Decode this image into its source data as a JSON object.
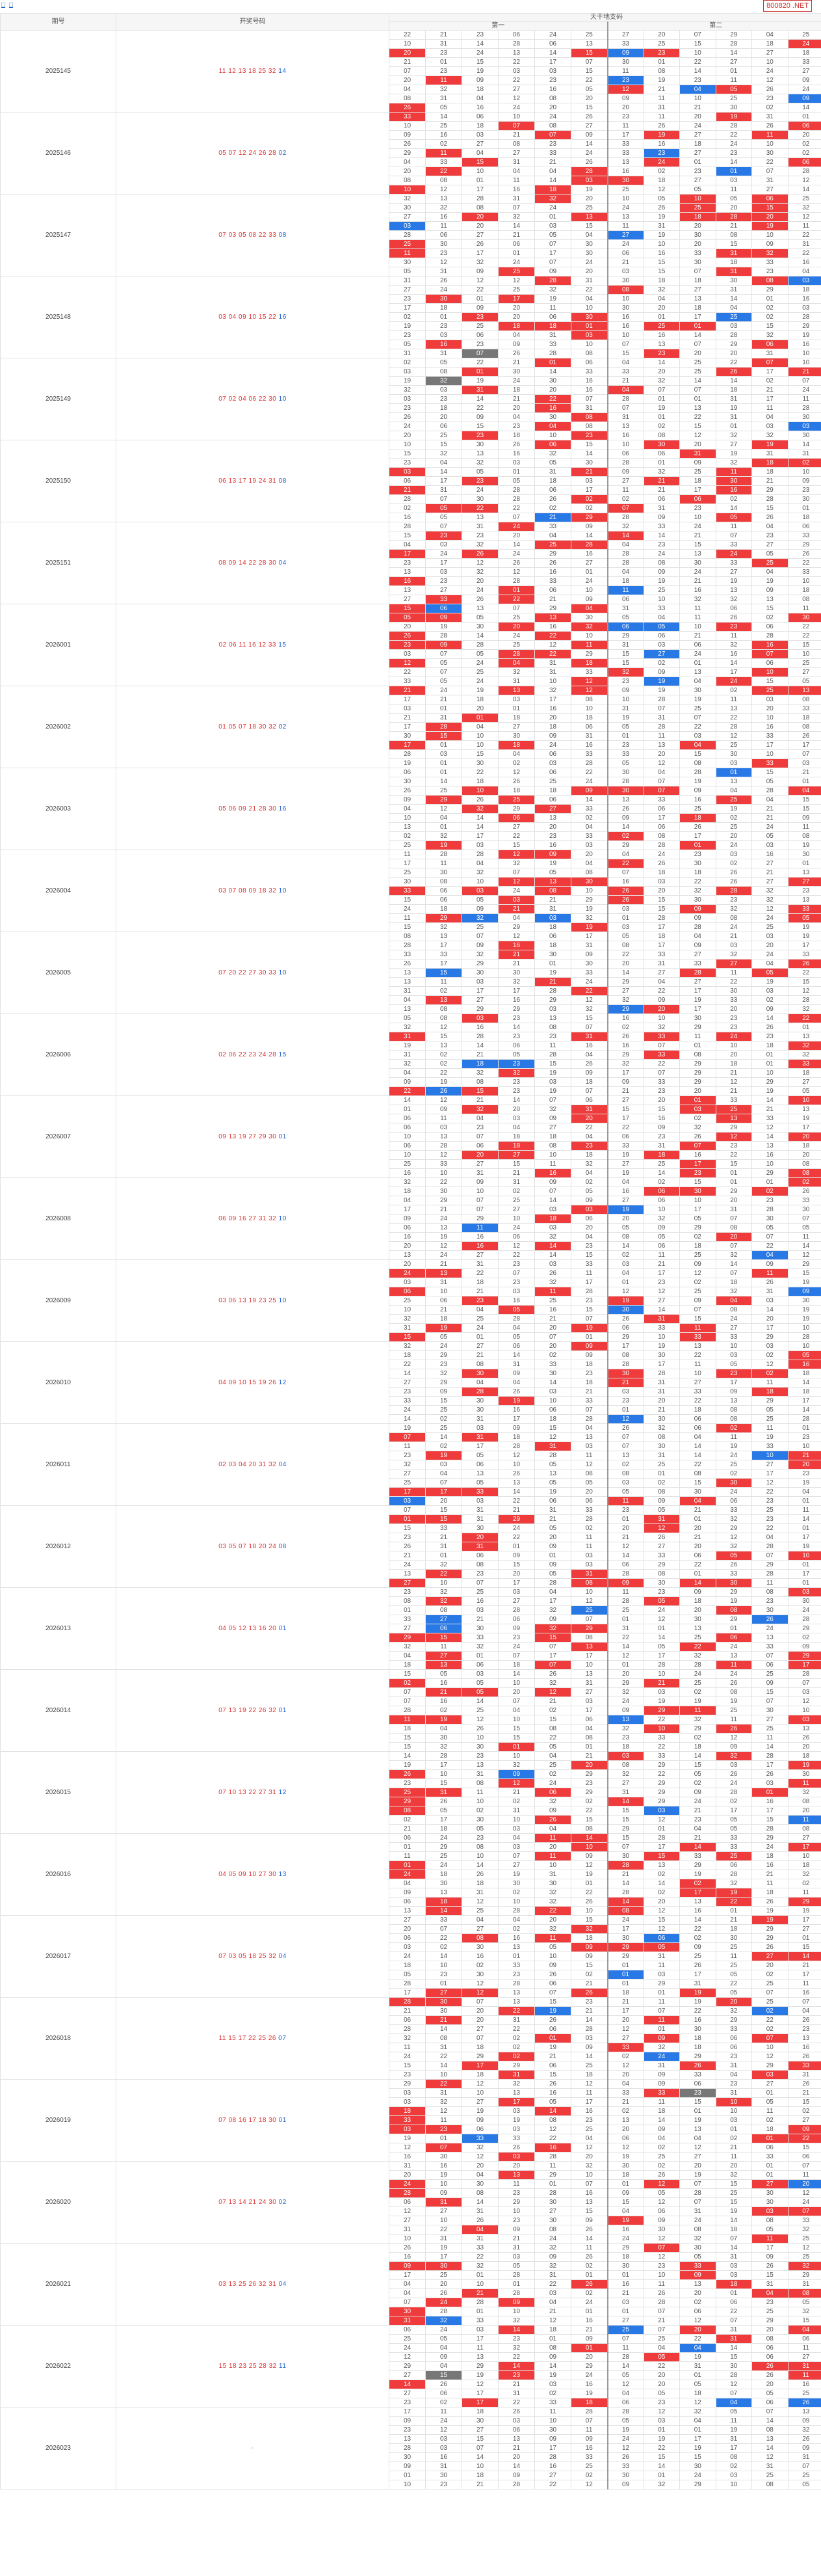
{
  "topbar": {
    "link1": "□",
    "link2": "□",
    "code_label": "800820 .NET"
  },
  "header": {
    "col_period": "期号",
    "col_draw": "开奖号码",
    "col_main": "天干地支码",
    "sub1": "第一",
    "sub2": "第二"
  },
  "periods": [
    {
      "id": "2025145",
      "draw": [
        [
          "11",
          "r"
        ],
        [
          "12",
          "r"
        ],
        [
          "13",
          "r"
        ],
        [
          "18",
          "r"
        ],
        [
          "25",
          "r"
        ],
        [
          "32",
          "r"
        ],
        [
          "14",
          "b"
        ]
      ]
    },
    {
      "id": "2025146",
      "draw": [
        [
          "05",
          "r"
        ],
        [
          "07",
          "r"
        ],
        [
          "12",
          "r"
        ],
        [
          "24",
          "r"
        ],
        [
          "26",
          "r"
        ],
        [
          "28",
          "r"
        ],
        [
          "02",
          "b"
        ]
      ]
    },
    {
      "id": "2025147",
      "draw": [
        [
          "07",
          "r"
        ],
        [
          "03",
          "r"
        ],
        [
          "05",
          "r"
        ],
        [
          "08",
          "r"
        ],
        [
          "22",
          "r"
        ],
        [
          "33",
          "r"
        ],
        [
          "08",
          "b"
        ]
      ]
    },
    {
      "id": "2025148",
      "draw": [
        [
          "03",
          "r"
        ],
        [
          "04",
          "r"
        ],
        [
          "09",
          "r"
        ],
        [
          "10",
          "r"
        ],
        [
          "15",
          "r"
        ],
        [
          "22",
          "r"
        ],
        [
          "16",
          "b"
        ]
      ]
    },
    {
      "id": "2025149",
      "draw": [
        [
          "07",
          "r"
        ],
        [
          "02",
          "r"
        ],
        [
          "04",
          "r"
        ],
        [
          "06",
          "r"
        ],
        [
          "22",
          "r"
        ],
        [
          "30",
          "r"
        ],
        [
          "10",
          "b"
        ]
      ]
    },
    {
      "id": "2025150",
      "draw": [
        [
          "06",
          "r"
        ],
        [
          "13",
          "r"
        ],
        [
          "17",
          "r"
        ],
        [
          "19",
          "r"
        ],
        [
          "24",
          "r"
        ],
        [
          "31",
          "r"
        ],
        [
          "08",
          "b"
        ]
      ]
    },
    {
      "id": "2025151",
      "draw": [
        [
          "08",
          "r"
        ],
        [
          "09",
          "r"
        ],
        [
          "14",
          "r"
        ],
        [
          "22",
          "r"
        ],
        [
          "28",
          "r"
        ],
        [
          "30",
          "r"
        ],
        [
          "04",
          "b"
        ]
      ]
    },
    {
      "id": "2026001",
      "draw": [
        [
          "02",
          "r"
        ],
        [
          "06",
          "r"
        ],
        [
          "11",
          "r"
        ],
        [
          "16",
          "r"
        ],
        [
          "12",
          "r"
        ],
        [
          "33",
          "r"
        ],
        [
          "15",
          "b"
        ]
      ]
    },
    {
      "id": "2026002",
      "draw": [
        [
          "01",
          "r"
        ],
        [
          "05",
          "r"
        ],
        [
          "07",
          "r"
        ],
        [
          "18",
          "r"
        ],
        [
          "30",
          "r"
        ],
        [
          "32",
          "r"
        ],
        [
          "02",
          "b"
        ]
      ]
    },
    {
      "id": "2026003",
      "draw": [
        [
          "05",
          "r"
        ],
        [
          "06",
          "r"
        ],
        [
          "09",
          "r"
        ],
        [
          "21",
          "r"
        ],
        [
          "28",
          "r"
        ],
        [
          "30",
          "r"
        ],
        [
          "16",
          "b"
        ]
      ]
    },
    {
      "id": "2026004",
      "draw": [
        [
          "03",
          "r"
        ],
        [
          "07",
          "r"
        ],
        [
          "08",
          "r"
        ],
        [
          "09",
          "r"
        ],
        [
          "18",
          "r"
        ],
        [
          "32",
          "r"
        ],
        [
          "10",
          "b"
        ]
      ]
    },
    {
      "id": "2026005",
      "draw": [
        [
          "07",
          "r"
        ],
        [
          "20",
          "r"
        ],
        [
          "22",
          "r"
        ],
        [
          "27",
          "r"
        ],
        [
          "30",
          "r"
        ],
        [
          "33",
          "r"
        ],
        [
          "10",
          "b"
        ]
      ]
    },
    {
      "id": "2026006",
      "draw": [
        [
          "02",
          "r"
        ],
        [
          "06",
          "r"
        ],
        [
          "22",
          "r"
        ],
        [
          "23",
          "r"
        ],
        [
          "24",
          "r"
        ],
        [
          "28",
          "r"
        ],
        [
          "15",
          "b"
        ]
      ]
    },
    {
      "id": "2026007",
      "draw": [
        [
          "09",
          "r"
        ],
        [
          "13",
          "r"
        ],
        [
          "19",
          "r"
        ],
        [
          "27",
          "r"
        ],
        [
          "29",
          "r"
        ],
        [
          "30",
          "r"
        ],
        [
          "01",
          "b"
        ]
      ]
    },
    {
      "id": "2026008",
      "draw": [
        [
          "06",
          "r"
        ],
        [
          "09",
          "r"
        ],
        [
          "16",
          "r"
        ],
        [
          "27",
          "r"
        ],
        [
          "31",
          "r"
        ],
        [
          "32",
          "r"
        ],
        [
          "10",
          "b"
        ]
      ]
    },
    {
      "id": "2026009",
      "draw": [
        [
          "03",
          "r"
        ],
        [
          "06",
          "r"
        ],
        [
          "13",
          "r"
        ],
        [
          "19",
          "r"
        ],
        [
          "23",
          "r"
        ],
        [
          "25",
          "r"
        ],
        [
          "10",
          "b"
        ]
      ]
    },
    {
      "id": "2026010",
      "draw": [
        [
          "04",
          "r"
        ],
        [
          "09",
          "r"
        ],
        [
          "10",
          "r"
        ],
        [
          "15",
          "r"
        ],
        [
          "19",
          "r"
        ],
        [
          "26",
          "r"
        ],
        [
          "12",
          "b"
        ]
      ]
    },
    {
      "id": "2026011",
      "draw": [
        [
          "02",
          "r"
        ],
        [
          "03",
          "r"
        ],
        [
          "04",
          "r"
        ],
        [
          "20",
          "r"
        ],
        [
          "31",
          "r"
        ],
        [
          "32",
          "r"
        ],
        [
          "04",
          "b"
        ]
      ]
    },
    {
      "id": "2026012",
      "draw": [
        [
          "03",
          "r"
        ],
        [
          "05",
          "r"
        ],
        [
          "07",
          "r"
        ],
        [
          "18",
          "r"
        ],
        [
          "20",
          "r"
        ],
        [
          "24",
          "r"
        ],
        [
          "08",
          "b"
        ]
      ]
    },
    {
      "id": "2026013",
      "draw": [
        [
          "04",
          "r"
        ],
        [
          "05",
          "r"
        ],
        [
          "12",
          "r"
        ],
        [
          "13",
          "r"
        ],
        [
          "16",
          "r"
        ],
        [
          "20",
          "r"
        ],
        [
          "01",
          "b"
        ]
      ]
    },
    {
      "id": "2026014",
      "draw": [
        [
          "07",
          "r"
        ],
        [
          "13",
          "r"
        ],
        [
          "19",
          "r"
        ],
        [
          "22",
          "r"
        ],
        [
          "26",
          "r"
        ],
        [
          "32",
          "r"
        ],
        [
          "01",
          "b"
        ]
      ]
    },
    {
      "id": "2026015",
      "draw": [
        [
          "07",
          "r"
        ],
        [
          "10",
          "r"
        ],
        [
          "13",
          "r"
        ],
        [
          "22",
          "r"
        ],
        [
          "27",
          "r"
        ],
        [
          "31",
          "r"
        ],
        [
          "12",
          "b"
        ]
      ]
    },
    {
      "id": "2026016",
      "draw": [
        [
          "04",
          "r"
        ],
        [
          "05",
          "r"
        ],
        [
          "09",
          "r"
        ],
        [
          "10",
          "r"
        ],
        [
          "27",
          "r"
        ],
        [
          "30",
          "r"
        ],
        [
          "13",
          "b"
        ]
      ]
    },
    {
      "id": "2026017",
      "draw": [
        [
          "07",
          "r"
        ],
        [
          "03",
          "r"
        ],
        [
          "05",
          "r"
        ],
        [
          "18",
          "r"
        ],
        [
          "25",
          "r"
        ],
        [
          "32",
          "r"
        ],
        [
          "04",
          "b"
        ]
      ]
    },
    {
      "id": "2026018",
      "draw": [
        [
          "11",
          "r"
        ],
        [
          "15",
          "r"
        ],
        [
          "17",
          "r"
        ],
        [
          "22",
          "r"
        ],
        [
          "25",
          "r"
        ],
        [
          "26",
          "r"
        ],
        [
          "07",
          "b"
        ]
      ]
    },
    {
      "id": "2026019",
      "draw": [
        [
          "07",
          "r"
        ],
        [
          "08",
          "r"
        ],
        [
          "16",
          "r"
        ],
        [
          "17",
          "r"
        ],
        [
          "18",
          "r"
        ],
        [
          "30",
          "r"
        ],
        [
          "01",
          "b"
        ]
      ]
    },
    {
      "id": "2026020",
      "draw": [
        [
          "07",
          "r"
        ],
        [
          "13",
          "r"
        ],
        [
          "14",
          "r"
        ],
        [
          "21",
          "r"
        ],
        [
          "24",
          "r"
        ],
        [
          "30",
          "r"
        ],
        [
          "02",
          "b"
        ]
      ]
    },
    {
      "id": "2026021",
      "draw": [
        [
          "03",
          "r"
        ],
        [
          "13",
          "r"
        ],
        [
          "25",
          "r"
        ],
        [
          "26",
          "r"
        ],
        [
          "32",
          "r"
        ],
        [
          "31",
          "r"
        ],
        [
          "04",
          "b"
        ]
      ]
    },
    {
      "id": "2026022",
      "draw": [
        [
          "15",
          "r"
        ],
        [
          "18",
          "r"
        ],
        [
          "23",
          "r"
        ],
        [
          "25",
          "r"
        ],
        [
          "28",
          "r"
        ],
        [
          "32",
          "r"
        ],
        [
          "11",
          "b"
        ]
      ]
    },
    {
      "id": "2026023",
      "draw": [
        [
          "-",
          "g"
        ]
      ]
    }
  ],
  "colors": {
    "red": "#ef3b3b",
    "blue": "#2878e6",
    "gray": "#777777"
  }
}
